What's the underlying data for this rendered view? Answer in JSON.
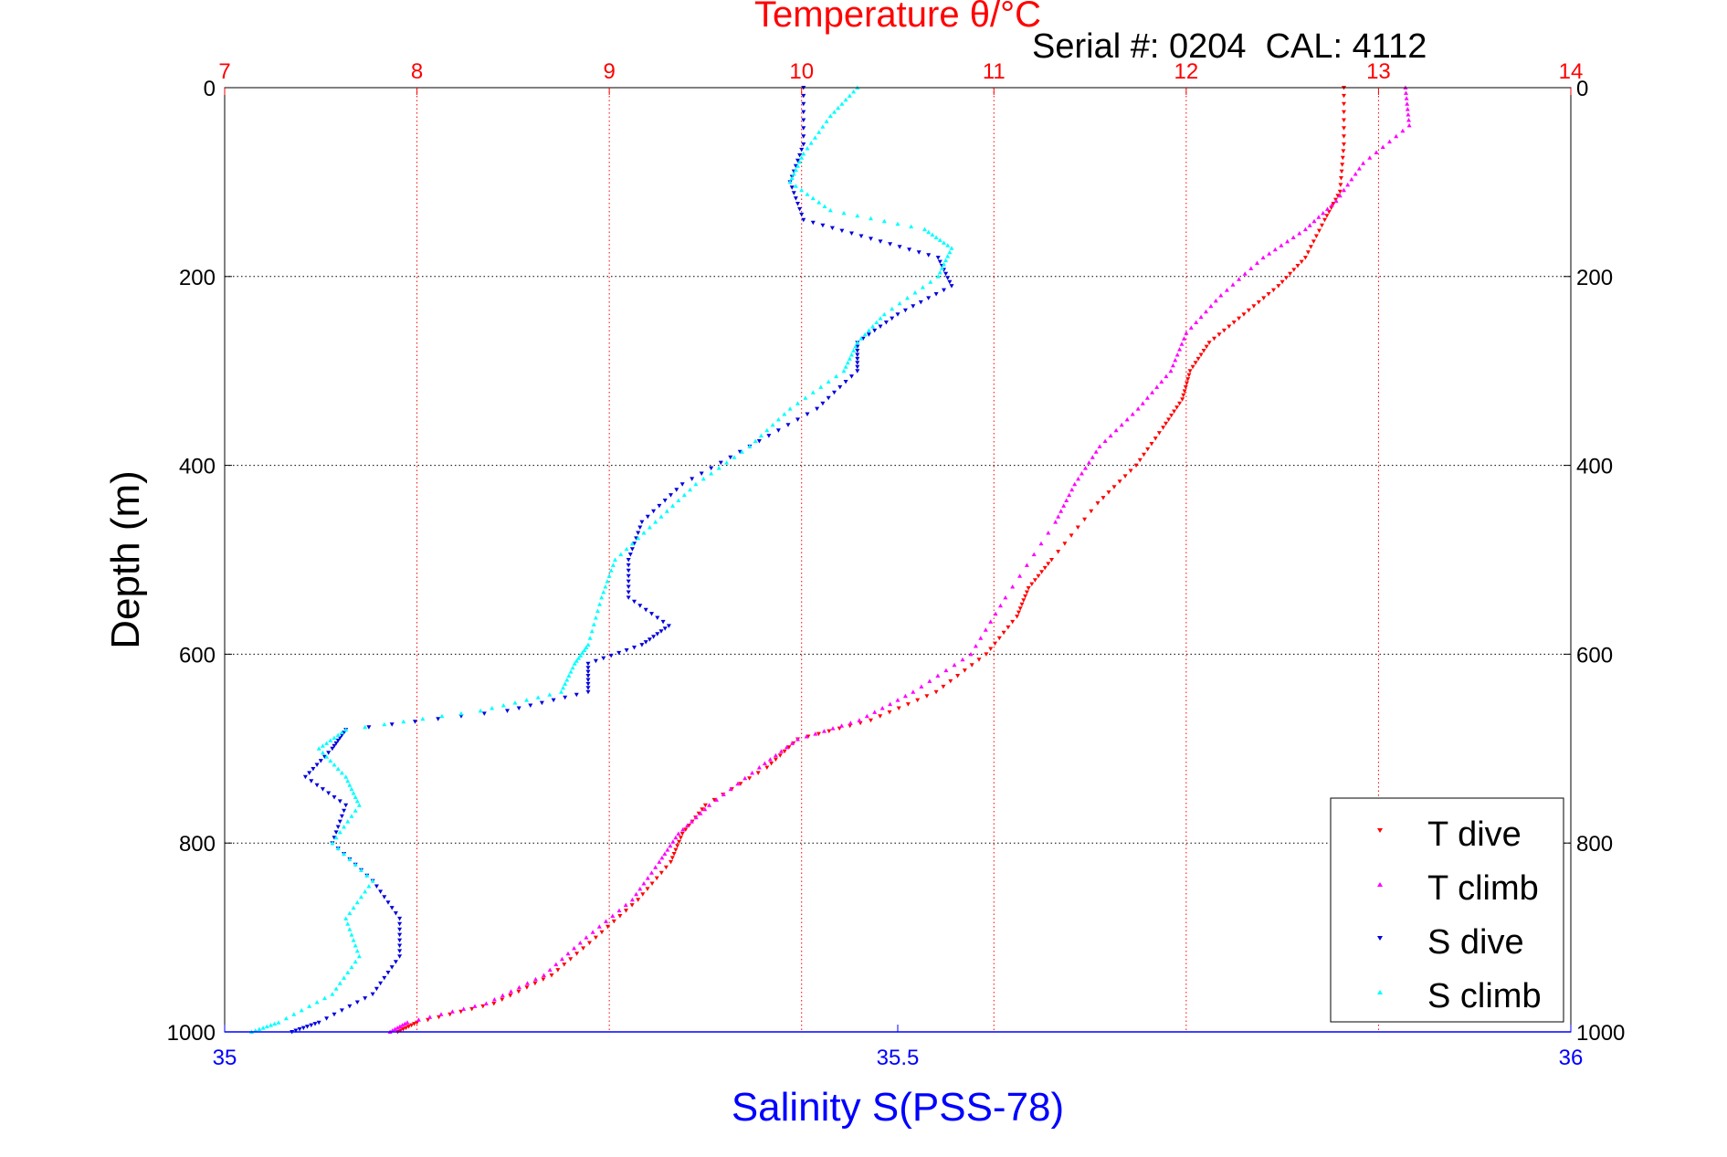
{
  "chart_data": {
    "type": "scatter",
    "title": "Temperature θ/°C",
    "subtitle": "Serial #: 0204  CAL: 4112",
    "ylabel": "Depth (m)",
    "xlabel_bottom": "Salinity S(PSS-78)",
    "y_axis": {
      "range": [
        0,
        1000
      ],
      "reversed": true,
      "ticks": [
        0,
        200,
        400,
        600,
        800,
        1000
      ]
    },
    "top_axis": {
      "quantity": "Temperature",
      "range": [
        7,
        14
      ],
      "ticks": [
        7,
        8,
        9,
        10,
        11,
        12,
        13,
        14
      ]
    },
    "bottom_axis": {
      "quantity": "Salinity",
      "range": [
        35,
        36
      ],
      "ticks": [
        35,
        35.5,
        36
      ],
      "tick_labels": [
        "35",
        "35.5",
        "36"
      ]
    },
    "grid": true,
    "legend_position": "bottom-right",
    "colors": {
      "title": "#ff0000",
      "salinity_label": "#0000ff",
      "t_dive": "#ff0000",
      "t_climb": "#ff00ff",
      "s_dive": "#0000dd",
      "s_climb": "#00ffff"
    },
    "series": [
      {
        "name": "T dive",
        "axis": "temperature",
        "marker": "triangle-down",
        "points": [
          [
            12.82,
            0
          ],
          [
            12.82,
            60
          ],
          [
            12.8,
            110
          ],
          [
            12.72,
            140
          ],
          [
            12.62,
            180
          ],
          [
            12.48,
            210
          ],
          [
            12.3,
            240
          ],
          [
            12.12,
            270
          ],
          [
            12.02,
            300
          ],
          [
            11.98,
            330
          ],
          [
            11.88,
            360
          ],
          [
            11.74,
            400
          ],
          [
            11.54,
            440
          ],
          [
            11.3,
            500
          ],
          [
            11.18,
            530
          ],
          [
            11.12,
            560
          ],
          [
            10.96,
            600
          ],
          [
            10.7,
            640
          ],
          [
            10.36,
            670
          ],
          [
            9.98,
            690
          ],
          [
            9.82,
            720
          ],
          [
            9.5,
            760
          ],
          [
            9.38,
            790
          ],
          [
            9.32,
            820
          ],
          [
            9.15,
            860
          ],
          [
            8.93,
            900
          ],
          [
            8.7,
            940
          ],
          [
            8.4,
            970
          ],
          [
            8.0,
            990
          ],
          [
            7.9,
            1000
          ]
        ]
      },
      {
        "name": "T climb",
        "axis": "temperature",
        "marker": "triangle-up",
        "points": [
          [
            13.14,
            0
          ],
          [
            13.16,
            40
          ],
          [
            12.92,
            80
          ],
          [
            12.78,
            120
          ],
          [
            12.62,
            150
          ],
          [
            12.4,
            180
          ],
          [
            12.18,
            220
          ],
          [
            12.0,
            260
          ],
          [
            11.92,
            300
          ],
          [
            11.75,
            340
          ],
          [
            11.55,
            380
          ],
          [
            11.42,
            420
          ],
          [
            11.32,
            460
          ],
          [
            11.06,
            540
          ],
          [
            10.88,
            600
          ],
          [
            10.58,
            640
          ],
          [
            10.3,
            670
          ],
          [
            9.98,
            690
          ],
          [
            9.78,
            720
          ],
          [
            9.52,
            760
          ],
          [
            9.36,
            790
          ],
          [
            9.26,
            820
          ],
          [
            9.12,
            860
          ],
          [
            8.88,
            900
          ],
          [
            8.66,
            940
          ],
          [
            8.36,
            970
          ],
          [
            7.95,
            990
          ],
          [
            7.86,
            1000
          ]
        ]
      },
      {
        "name": "S dive",
        "axis": "salinity",
        "marker": "triangle-down",
        "points": [
          [
            35.43,
            0
          ],
          [
            35.43,
            60
          ],
          [
            35.42,
            100
          ],
          [
            35.43,
            140
          ],
          [
            35.48,
            160
          ],
          [
            35.53,
            180
          ],
          [
            35.54,
            210
          ],
          [
            35.5,
            240
          ],
          [
            35.47,
            270
          ],
          [
            35.47,
            300
          ],
          [
            35.44,
            340
          ],
          [
            35.39,
            380
          ],
          [
            35.34,
            420
          ],
          [
            35.31,
            460
          ],
          [
            35.3,
            500
          ],
          [
            35.3,
            540
          ],
          [
            35.33,
            570
          ],
          [
            35.31,
            590
          ],
          [
            35.27,
            610
          ],
          [
            35.27,
            640
          ],
          [
            35.21,
            660
          ],
          [
            35.09,
            680
          ],
          [
            35.08,
            700
          ],
          [
            35.06,
            730
          ],
          [
            35.09,
            760
          ],
          [
            35.08,
            800
          ],
          [
            35.11,
            840
          ],
          [
            35.13,
            880
          ],
          [
            35.13,
            920
          ],
          [
            35.11,
            960
          ],
          [
            35.07,
            990
          ],
          [
            35.05,
            1000
          ]
        ]
      },
      {
        "name": "S climb",
        "axis": "salinity",
        "marker": "triangle-up",
        "points": [
          [
            35.47,
            0
          ],
          [
            35.45,
            30
          ],
          [
            35.43,
            70
          ],
          [
            35.42,
            100
          ],
          [
            35.45,
            130
          ],
          [
            35.52,
            150
          ],
          [
            35.54,
            170
          ],
          [
            35.53,
            200
          ],
          [
            35.49,
            240
          ],
          [
            35.47,
            270
          ],
          [
            35.46,
            300
          ],
          [
            35.42,
            340
          ],
          [
            35.39,
            380
          ],
          [
            35.35,
            420
          ],
          [
            35.32,
            460
          ],
          [
            35.29,
            500
          ],
          [
            35.28,
            540
          ],
          [
            35.27,
            590
          ],
          [
            35.26,
            610
          ],
          [
            35.25,
            640
          ],
          [
            35.19,
            660
          ],
          [
            35.09,
            680
          ],
          [
            35.07,
            700
          ],
          [
            35.09,
            730
          ],
          [
            35.1,
            760
          ],
          [
            35.08,
            800
          ],
          [
            35.11,
            840
          ],
          [
            35.09,
            880
          ],
          [
            35.1,
            920
          ],
          [
            35.08,
            960
          ],
          [
            35.04,
            990
          ],
          [
            35.02,
            1000
          ]
        ]
      }
    ]
  }
}
